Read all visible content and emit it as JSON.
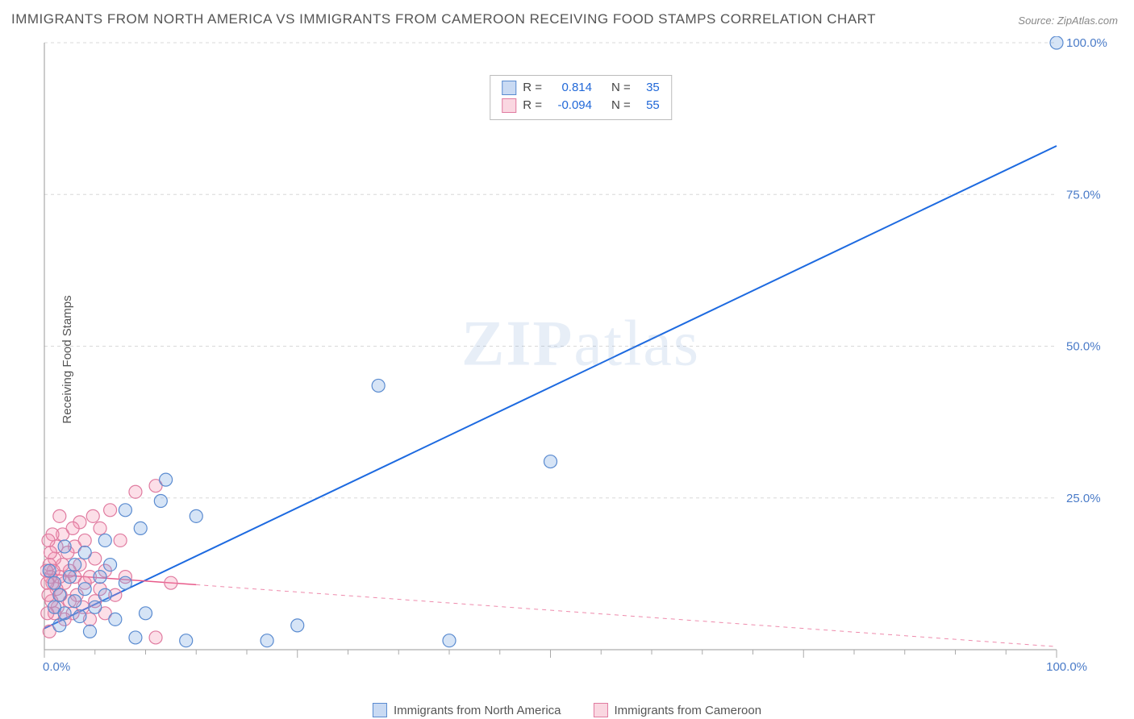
{
  "title": "IMMIGRANTS FROM NORTH AMERICA VS IMMIGRANTS FROM CAMEROON RECEIVING FOOD STAMPS CORRELATION CHART",
  "source_label": "Source:",
  "source_name": "ZipAtlas.com",
  "y_axis_label": "Receiving Food Stamps",
  "watermark_bold": "ZIP",
  "watermark_rest": "atlas",
  "chart": {
    "type": "scatter",
    "xlim": [
      0,
      100
    ],
    "ylim": [
      0,
      100
    ],
    "x_ticks": [
      0,
      25,
      50,
      75,
      100
    ],
    "y_ticks": [
      0,
      25,
      50,
      75,
      100
    ],
    "x_tick_labels": [
      "0.0%",
      "",
      "",
      "",
      "100.0%"
    ],
    "y_tick_labels": [
      "",
      "25.0%",
      "50.0%",
      "75.0%",
      "100.0%"
    ],
    "grid_color": "#d8d8d8",
    "grid_dash": "4,4",
    "axis_line_color": "#999999",
    "tick_color": "#aaaaaa",
    "background_color": "#ffffff",
    "tick_label_color": "#4a7bc8",
    "marker_radius": 8,
    "marker_stroke_width": 1.2,
    "series": [
      {
        "id": "north_america",
        "label": "Immigrants from North America",
        "fill": "rgba(120,165,225,0.30)",
        "stroke": "#5a8bd0",
        "points": [
          [
            100,
            100
          ],
          [
            33,
            43.5
          ],
          [
            50,
            31
          ],
          [
            40,
            1.5
          ],
          [
            25,
            4
          ],
          [
            22,
            1.5
          ],
          [
            15,
            22
          ],
          [
            14,
            1.5
          ],
          [
            12,
            28
          ],
          [
            11.5,
            24.5
          ],
          [
            10,
            6
          ],
          [
            9,
            2
          ],
          [
            9.5,
            20
          ],
          [
            8,
            23
          ],
          [
            8,
            11
          ],
          [
            7,
            5
          ],
          [
            6.5,
            14
          ],
          [
            6,
            18
          ],
          [
            6,
            9
          ],
          [
            5.5,
            12
          ],
          [
            5,
            7
          ],
          [
            4.5,
            3
          ],
          [
            4,
            16
          ],
          [
            4,
            10
          ],
          [
            3.5,
            5.5
          ],
          [
            3,
            14
          ],
          [
            3,
            8
          ],
          [
            2.5,
            12
          ],
          [
            2,
            6
          ],
          [
            2,
            17
          ],
          [
            1.5,
            9
          ],
          [
            1.5,
            4
          ],
          [
            1,
            11
          ],
          [
            1,
            7
          ],
          [
            0.5,
            13
          ]
        ],
        "regression": {
          "x1": 0,
          "y1": 3.5,
          "x2": 100,
          "y2": 83,
          "color": "#1d6ae0",
          "width": 2
        },
        "r_label": "R =",
        "r_value": "0.814",
        "n_label": "N =",
        "n_value": "35"
      },
      {
        "id": "cameroon",
        "label": "Immigrants from Cameroon",
        "fill": "rgba(245,150,180,0.30)",
        "stroke": "#e07ba0",
        "points": [
          [
            11,
            27
          ],
          [
            11,
            2
          ],
          [
            12.5,
            11
          ],
          [
            9,
            26
          ],
          [
            8,
            12
          ],
          [
            7.5,
            18
          ],
          [
            7,
            9
          ],
          [
            6.5,
            23
          ],
          [
            6,
            13
          ],
          [
            6,
            6
          ],
          [
            5.5,
            20
          ],
          [
            5.5,
            10
          ],
          [
            5,
            15
          ],
          [
            5,
            8
          ],
          [
            4.8,
            22
          ],
          [
            4.5,
            12
          ],
          [
            4.5,
            5
          ],
          [
            4,
            18
          ],
          [
            4,
            11
          ],
          [
            3.8,
            7
          ],
          [
            3.5,
            21
          ],
          [
            3.5,
            14
          ],
          [
            3.2,
            9
          ],
          [
            3,
            17
          ],
          [
            3,
            12
          ],
          [
            2.8,
            6
          ],
          [
            2.8,
            20
          ],
          [
            2.5,
            13
          ],
          [
            2.5,
            8
          ],
          [
            2.3,
            16
          ],
          [
            2,
            11
          ],
          [
            2,
            5
          ],
          [
            1.8,
            19
          ],
          [
            1.8,
            14
          ],
          [
            1.6,
            9
          ],
          [
            1.5,
            22
          ],
          [
            1.5,
            12
          ],
          [
            1.3,
            7
          ],
          [
            1.2,
            17
          ],
          [
            1.2,
            10
          ],
          [
            1,
            15
          ],
          [
            1,
            6
          ],
          [
            0.9,
            13
          ],
          [
            0.8,
            19
          ],
          [
            0.8,
            11
          ],
          [
            0.7,
            8
          ],
          [
            0.6,
            16
          ],
          [
            0.6,
            12
          ],
          [
            0.5,
            3
          ],
          [
            0.5,
            14
          ],
          [
            0.4,
            9
          ],
          [
            0.4,
            18
          ],
          [
            0.3,
            11
          ],
          [
            0.3,
            6
          ],
          [
            0.2,
            13
          ]
        ],
        "regression": {
          "x1": 0,
          "y1": 12.5,
          "x2": 100,
          "y2": 0.5,
          "solid_until_x": 15,
          "color": "#e85a8a",
          "width": 1.5
        },
        "r_label": "R =",
        "r_value": "-0.094",
        "n_label": "N =",
        "n_value": "55"
      }
    ]
  }
}
